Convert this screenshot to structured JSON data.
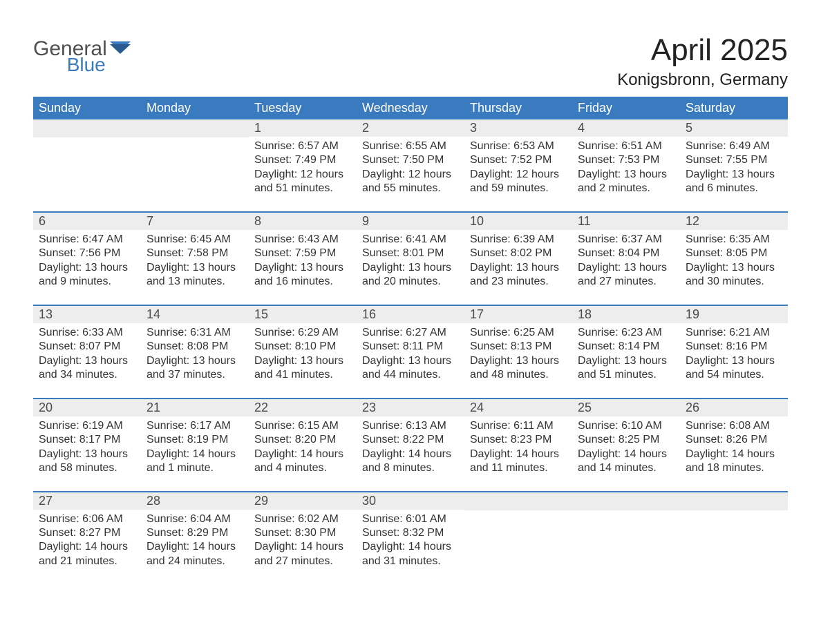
{
  "logo": {
    "general": "General",
    "blue": "Blue"
  },
  "title": "April 2025",
  "location": "Konigsbronn, Germany",
  "colors": {
    "header_bg": "#3a7bbf",
    "header_text": "#ffffff",
    "daynum_bg": "#ededed",
    "week_border": "#3a7bbf",
    "text": "#333333",
    "logo_gray": "#505050",
    "logo_blue": "#3a7bbf",
    "background": "#ffffff"
  },
  "day_names": [
    "Sunday",
    "Monday",
    "Tuesday",
    "Wednesday",
    "Thursday",
    "Friday",
    "Saturday"
  ],
  "weeks": [
    [
      {
        "day": "",
        "sunrise": "",
        "sunset": "",
        "daylight": ""
      },
      {
        "day": "",
        "sunrise": "",
        "sunset": "",
        "daylight": ""
      },
      {
        "day": "1",
        "sunrise": "Sunrise: 6:57 AM",
        "sunset": "Sunset: 7:49 PM",
        "daylight": "Daylight: 12 hours and 51 minutes."
      },
      {
        "day": "2",
        "sunrise": "Sunrise: 6:55 AM",
        "sunset": "Sunset: 7:50 PM",
        "daylight": "Daylight: 12 hours and 55 minutes."
      },
      {
        "day": "3",
        "sunrise": "Sunrise: 6:53 AM",
        "sunset": "Sunset: 7:52 PM",
        "daylight": "Daylight: 12 hours and 59 minutes."
      },
      {
        "day": "4",
        "sunrise": "Sunrise: 6:51 AM",
        "sunset": "Sunset: 7:53 PM",
        "daylight": "Daylight: 13 hours and 2 minutes."
      },
      {
        "day": "5",
        "sunrise": "Sunrise: 6:49 AM",
        "sunset": "Sunset: 7:55 PM",
        "daylight": "Daylight: 13 hours and 6 minutes."
      }
    ],
    [
      {
        "day": "6",
        "sunrise": "Sunrise: 6:47 AM",
        "sunset": "Sunset: 7:56 PM",
        "daylight": "Daylight: 13 hours and 9 minutes."
      },
      {
        "day": "7",
        "sunrise": "Sunrise: 6:45 AM",
        "sunset": "Sunset: 7:58 PM",
        "daylight": "Daylight: 13 hours and 13 minutes."
      },
      {
        "day": "8",
        "sunrise": "Sunrise: 6:43 AM",
        "sunset": "Sunset: 7:59 PM",
        "daylight": "Daylight: 13 hours and 16 minutes."
      },
      {
        "day": "9",
        "sunrise": "Sunrise: 6:41 AM",
        "sunset": "Sunset: 8:01 PM",
        "daylight": "Daylight: 13 hours and 20 minutes."
      },
      {
        "day": "10",
        "sunrise": "Sunrise: 6:39 AM",
        "sunset": "Sunset: 8:02 PM",
        "daylight": "Daylight: 13 hours and 23 minutes."
      },
      {
        "day": "11",
        "sunrise": "Sunrise: 6:37 AM",
        "sunset": "Sunset: 8:04 PM",
        "daylight": "Daylight: 13 hours and 27 minutes."
      },
      {
        "day": "12",
        "sunrise": "Sunrise: 6:35 AM",
        "sunset": "Sunset: 8:05 PM",
        "daylight": "Daylight: 13 hours and 30 minutes."
      }
    ],
    [
      {
        "day": "13",
        "sunrise": "Sunrise: 6:33 AM",
        "sunset": "Sunset: 8:07 PM",
        "daylight": "Daylight: 13 hours and 34 minutes."
      },
      {
        "day": "14",
        "sunrise": "Sunrise: 6:31 AM",
        "sunset": "Sunset: 8:08 PM",
        "daylight": "Daylight: 13 hours and 37 minutes."
      },
      {
        "day": "15",
        "sunrise": "Sunrise: 6:29 AM",
        "sunset": "Sunset: 8:10 PM",
        "daylight": "Daylight: 13 hours and 41 minutes."
      },
      {
        "day": "16",
        "sunrise": "Sunrise: 6:27 AM",
        "sunset": "Sunset: 8:11 PM",
        "daylight": "Daylight: 13 hours and 44 minutes."
      },
      {
        "day": "17",
        "sunrise": "Sunrise: 6:25 AM",
        "sunset": "Sunset: 8:13 PM",
        "daylight": "Daylight: 13 hours and 48 minutes."
      },
      {
        "day": "18",
        "sunrise": "Sunrise: 6:23 AM",
        "sunset": "Sunset: 8:14 PM",
        "daylight": "Daylight: 13 hours and 51 minutes."
      },
      {
        "day": "19",
        "sunrise": "Sunrise: 6:21 AM",
        "sunset": "Sunset: 8:16 PM",
        "daylight": "Daylight: 13 hours and 54 minutes."
      }
    ],
    [
      {
        "day": "20",
        "sunrise": "Sunrise: 6:19 AM",
        "sunset": "Sunset: 8:17 PM",
        "daylight": "Daylight: 13 hours and 58 minutes."
      },
      {
        "day": "21",
        "sunrise": "Sunrise: 6:17 AM",
        "sunset": "Sunset: 8:19 PM",
        "daylight": "Daylight: 14 hours and 1 minute."
      },
      {
        "day": "22",
        "sunrise": "Sunrise: 6:15 AM",
        "sunset": "Sunset: 8:20 PM",
        "daylight": "Daylight: 14 hours and 4 minutes."
      },
      {
        "day": "23",
        "sunrise": "Sunrise: 6:13 AM",
        "sunset": "Sunset: 8:22 PM",
        "daylight": "Daylight: 14 hours and 8 minutes."
      },
      {
        "day": "24",
        "sunrise": "Sunrise: 6:11 AM",
        "sunset": "Sunset: 8:23 PM",
        "daylight": "Daylight: 14 hours and 11 minutes."
      },
      {
        "day": "25",
        "sunrise": "Sunrise: 6:10 AM",
        "sunset": "Sunset: 8:25 PM",
        "daylight": "Daylight: 14 hours and 14 minutes."
      },
      {
        "day": "26",
        "sunrise": "Sunrise: 6:08 AM",
        "sunset": "Sunset: 8:26 PM",
        "daylight": "Daylight: 14 hours and 18 minutes."
      }
    ],
    [
      {
        "day": "27",
        "sunrise": "Sunrise: 6:06 AM",
        "sunset": "Sunset: 8:27 PM",
        "daylight": "Daylight: 14 hours and 21 minutes."
      },
      {
        "day": "28",
        "sunrise": "Sunrise: 6:04 AM",
        "sunset": "Sunset: 8:29 PM",
        "daylight": "Daylight: 14 hours and 24 minutes."
      },
      {
        "day": "29",
        "sunrise": "Sunrise: 6:02 AM",
        "sunset": "Sunset: 8:30 PM",
        "daylight": "Daylight: 14 hours and 27 minutes."
      },
      {
        "day": "30",
        "sunrise": "Sunrise: 6:01 AM",
        "sunset": "Sunset: 8:32 PM",
        "daylight": "Daylight: 14 hours and 31 minutes."
      },
      {
        "day": "",
        "sunrise": "",
        "sunset": "",
        "daylight": ""
      },
      {
        "day": "",
        "sunrise": "",
        "sunset": "",
        "daylight": ""
      },
      {
        "day": "",
        "sunrise": "",
        "sunset": "",
        "daylight": ""
      }
    ]
  ]
}
